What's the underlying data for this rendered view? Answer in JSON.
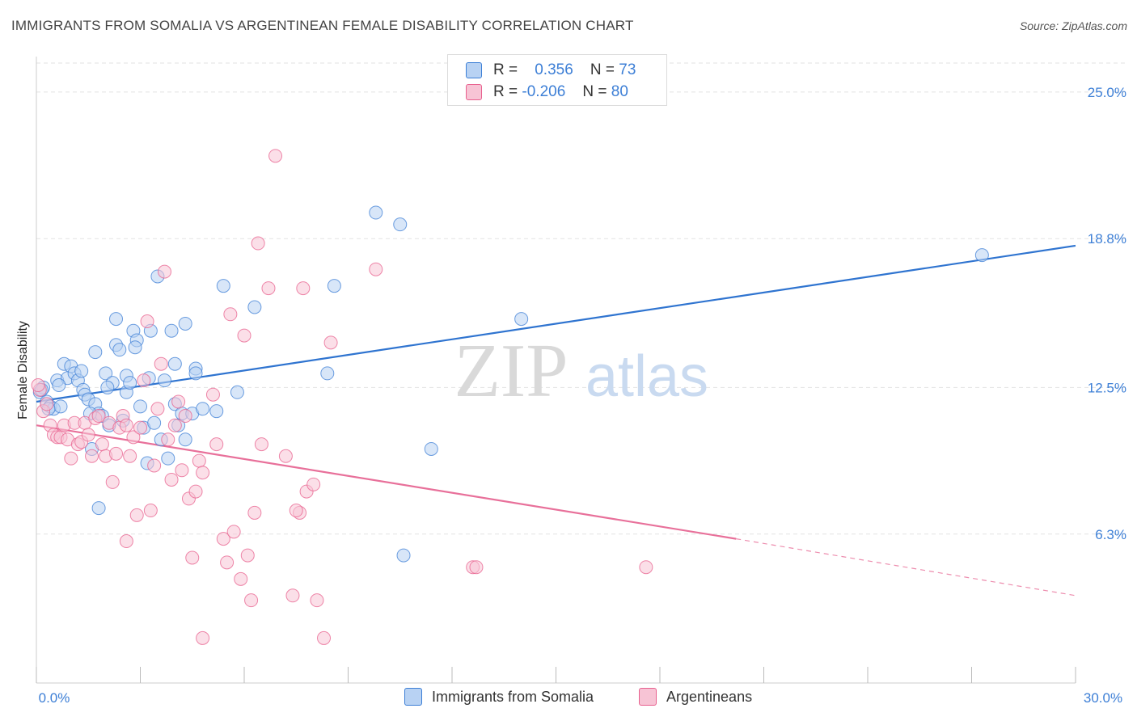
{
  "title": "IMMIGRANTS FROM SOMALIA VS ARGENTINEAN FEMALE DISABILITY CORRELATION CHART",
  "source": "Source: ZipAtlas.com",
  "watermark": {
    "zip": "ZIP",
    "atlas": "atlas"
  },
  "colors": {
    "blue": "#3d7fd6",
    "blue_fill": "#b8d2f3",
    "blue_line": "#2f74d0",
    "pink": "#e8608e",
    "pink_fill": "#f7c4d5",
    "pink_line": "#e8709a",
    "grid": "#e2e2e2"
  },
  "legend": {
    "rows": [
      {
        "r_label": "R =",
        "r_value": "0.356",
        "n_label": "N =",
        "n_value": "73",
        "color": "#b8d2f3"
      },
      {
        "r_label": "R =",
        "r_value": "-0.206",
        "n_label": "N =",
        "n_value": "80",
        "color": "#f7c4d5"
      }
    ]
  },
  "bottom_legend": [
    {
      "label": "Immigrants from Somalia",
      "color": "#b8d2f3"
    },
    {
      "label": "Argentineans",
      "color": "#f7c4d5"
    }
  ],
  "chart_data": {
    "type": "scatter",
    "ylabel": "Female Disability",
    "xlim": [
      0,
      30
    ],
    "ylim": [
      0,
      26.5
    ],
    "x_tick_labels": [
      {
        "value": 0,
        "label": "0.0%"
      },
      {
        "value": 30,
        "label": "30.0%"
      }
    ],
    "y_ticks": [
      {
        "value": 6.3,
        "label": "6.3%"
      },
      {
        "value": 12.5,
        "label": "12.5%"
      },
      {
        "value": 18.8,
        "label": "18.8%"
      },
      {
        "value": 25.0,
        "label": "25.0%"
      }
    ],
    "grid": "dashed horizontal",
    "series": [
      {
        "name": "Immigrants from Somalia",
        "color": "#3d7fd6",
        "trend": {
          "x0": 0,
          "y0": 11.9,
          "x1": 30,
          "y1": 18.5
        },
        "points": [
          [
            0.1,
            12.3
          ],
          [
            0.2,
            12.5
          ],
          [
            0.3,
            11.9
          ],
          [
            0.4,
            11.7
          ],
          [
            0.5,
            11.6
          ],
          [
            0.6,
            12.8
          ],
          [
            0.7,
            11.7
          ],
          [
            0.8,
            13.5
          ],
          [
            0.9,
            12.9
          ],
          [
            1.0,
            13.4
          ],
          [
            1.1,
            13.1
          ],
          [
            1.2,
            12.8
          ],
          [
            1.3,
            13.2
          ],
          [
            1.35,
            12.4
          ],
          [
            1.4,
            12.2
          ],
          [
            1.5,
            12.0
          ],
          [
            1.6,
            9.9
          ],
          [
            1.7,
            11.8
          ],
          [
            1.7,
            14.0
          ],
          [
            1.8,
            11.4
          ],
          [
            1.8,
            7.4
          ],
          [
            1.9,
            11.3
          ],
          [
            2.0,
            13.1
          ],
          [
            2.1,
            10.9
          ],
          [
            2.2,
            12.7
          ],
          [
            2.3,
            14.3
          ],
          [
            2.3,
            15.4
          ],
          [
            2.4,
            14.1
          ],
          [
            2.5,
            11.1
          ],
          [
            2.6,
            12.3
          ],
          [
            2.6,
            13.0
          ],
          [
            2.7,
            12.7
          ],
          [
            2.8,
            14.9
          ],
          [
            2.9,
            14.5
          ],
          [
            3.0,
            11.7
          ],
          [
            3.1,
            10.8
          ],
          [
            3.2,
            9.3
          ],
          [
            3.3,
            14.9
          ],
          [
            3.4,
            11.0
          ],
          [
            3.5,
            17.2
          ],
          [
            3.6,
            10.3
          ],
          [
            3.7,
            12.8
          ],
          [
            3.8,
            9.5
          ],
          [
            3.9,
            14.9
          ],
          [
            4.0,
            11.8
          ],
          [
            4.0,
            13.5
          ],
          [
            4.1,
            10.9
          ],
          [
            4.2,
            11.4
          ],
          [
            4.3,
            15.2
          ],
          [
            4.3,
            10.3
          ],
          [
            4.5,
            11.4
          ],
          [
            4.6,
            13.3
          ],
          [
            4.6,
            13.1
          ],
          [
            4.8,
            11.6
          ],
          [
            5.2,
            11.5
          ],
          [
            5.4,
            16.8
          ],
          [
            5.8,
            12.3
          ],
          [
            6.3,
            15.9
          ],
          [
            8.4,
            13.1
          ],
          [
            8.6,
            16.8
          ],
          [
            9.8,
            19.9
          ],
          [
            10.5,
            19.4
          ],
          [
            11.4,
            9.9
          ],
          [
            14.0,
            15.4
          ],
          [
            27.3,
            18.1
          ],
          [
            10.6,
            5.4
          ],
          [
            0.15,
            12.4
          ],
          [
            0.35,
            11.6
          ],
          [
            0.65,
            12.6
          ],
          [
            1.55,
            11.4
          ],
          [
            2.05,
            12.5
          ],
          [
            2.85,
            14.2
          ],
          [
            3.25,
            12.9
          ]
        ]
      },
      {
        "name": "Argentineans",
        "color": "#e8608e",
        "trend": {
          "x0": 0,
          "y0": 10.9,
          "x1": 20.2,
          "y1": 6.1
        },
        "trend_dashed": {
          "x0": 20.2,
          "y0": 6.1,
          "x1": 30,
          "y1": 3.7
        },
        "points": [
          [
            0.1,
            12.4
          ],
          [
            0.2,
            11.5
          ],
          [
            0.3,
            11.8
          ],
          [
            0.4,
            10.9
          ],
          [
            0.5,
            10.5
          ],
          [
            0.6,
            10.4
          ],
          [
            0.7,
            10.4
          ],
          [
            0.8,
            10.9
          ],
          [
            0.9,
            10.3
          ],
          [
            1.0,
            9.5
          ],
          [
            1.1,
            11.0
          ],
          [
            1.2,
            10.1
          ],
          [
            1.3,
            10.2
          ],
          [
            1.4,
            11.0
          ],
          [
            1.5,
            10.5
          ],
          [
            1.6,
            9.6
          ],
          [
            1.7,
            11.2
          ],
          [
            1.8,
            11.3
          ],
          [
            1.9,
            10.1
          ],
          [
            2.0,
            9.6
          ],
          [
            2.1,
            11.0
          ],
          [
            2.2,
            8.5
          ],
          [
            2.3,
            9.7
          ],
          [
            2.4,
            10.8
          ],
          [
            2.5,
            11.3
          ],
          [
            2.6,
            10.9
          ],
          [
            2.6,
            6.0
          ],
          [
            2.7,
            9.6
          ],
          [
            2.8,
            10.4
          ],
          [
            2.9,
            7.1
          ],
          [
            3.0,
            10.8
          ],
          [
            3.1,
            12.8
          ],
          [
            3.2,
            15.3
          ],
          [
            3.3,
            7.3
          ],
          [
            3.4,
            9.2
          ],
          [
            3.5,
            11.6
          ],
          [
            3.6,
            13.5
          ],
          [
            3.7,
            17.4
          ],
          [
            3.8,
            10.3
          ],
          [
            3.9,
            8.6
          ],
          [
            4.0,
            10.9
          ],
          [
            4.1,
            11.9
          ],
          [
            4.2,
            9.0
          ],
          [
            4.3,
            11.3
          ],
          [
            4.4,
            7.8
          ],
          [
            4.5,
            5.3
          ],
          [
            4.6,
            8.1
          ],
          [
            4.7,
            9.4
          ],
          [
            4.8,
            8.9
          ],
          [
            4.8,
            1.9
          ],
          [
            5.1,
            12.2
          ],
          [
            5.2,
            10.1
          ],
          [
            5.4,
            6.1
          ],
          [
            5.5,
            5.1
          ],
          [
            5.6,
            15.6
          ],
          [
            5.7,
            6.4
          ],
          [
            5.9,
            4.4
          ],
          [
            6.0,
            14.7
          ],
          [
            6.1,
            5.4
          ],
          [
            6.2,
            3.5
          ],
          [
            6.3,
            7.2
          ],
          [
            6.4,
            18.6
          ],
          [
            6.5,
            10.1
          ],
          [
            6.7,
            16.7
          ],
          [
            6.9,
            22.3
          ],
          [
            7.2,
            9.6
          ],
          [
            7.4,
            3.7
          ],
          [
            7.6,
            7.2
          ],
          [
            7.7,
            16.7
          ],
          [
            7.8,
            8.1
          ],
          [
            8.0,
            8.4
          ],
          [
            8.1,
            3.5
          ],
          [
            8.3,
            1.9
          ],
          [
            8.5,
            14.4
          ],
          [
            9.8,
            17.5
          ],
          [
            12.6,
            4.9
          ],
          [
            12.7,
            4.9
          ],
          [
            17.6,
            4.9
          ],
          [
            0.05,
            12.6
          ],
          [
            7.5,
            7.3
          ]
        ]
      }
    ]
  }
}
